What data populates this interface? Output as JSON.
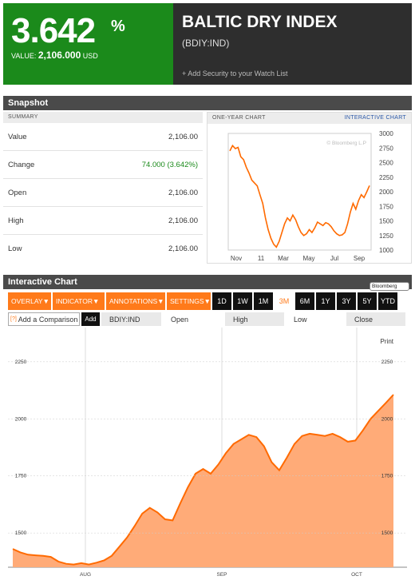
{
  "header": {
    "percent": "3.642",
    "percent_sign": "%",
    "value_label": "VALUE:",
    "value": "2,106.000",
    "currency": "USD",
    "title": "BALTIC DRY INDEX",
    "ticker": "(BDIY:IND)",
    "watch_link": "+ Add Security to your Watch List",
    "colors": {
      "up": "#1b8a1b",
      "dark": "#2e2e2e"
    }
  },
  "snapshot": {
    "title": "Snapshot",
    "summary_label": "SUMMARY",
    "rows": [
      {
        "label": "Value",
        "value": "2,106.00"
      },
      {
        "label": "Change",
        "value": "74.000 (3.642%)"
      },
      {
        "label": "Open",
        "value": "2,106.00"
      },
      {
        "label": "High",
        "value": "2,106.00"
      },
      {
        "label": "Low",
        "value": "2,106.00"
      }
    ],
    "one_year_label": "ONE-YEAR CHART",
    "interactive_link": "INTERACTIVE CHART",
    "watermark": "© Bloomberg L.P"
  },
  "interactive": {
    "title": "Interactive Chart",
    "bloomberg_tag": "Bloomberg",
    "menus": [
      "OVERLAY",
      "INDICATOR",
      "ANNOTATIONS",
      "SETTINGS"
    ],
    "ranges": [
      "1D",
      "1W",
      "1M",
      "3M",
      "6M",
      "1Y",
      "3Y",
      "5Y",
      "YTD"
    ],
    "selected_range": "3M",
    "compare_placeholder": "Add a Comparison",
    "compare_hint": "[?]",
    "add_label": "Add",
    "fields": [
      "BDIY:IND",
      "Open",
      "High",
      "Low",
      "Close"
    ],
    "print_label": "Print",
    "accent": "#ff7a1a"
  },
  "chart_data": [
    {
      "type": "line",
      "title": "ONE-YEAR CHART",
      "x_ticks": [
        "Nov",
        "11",
        "Mar",
        "May",
        "Jul",
        "Sep"
      ],
      "y_ticks": [
        3000,
        2750,
        2500,
        2250,
        2000,
        1750,
        1500,
        1250,
        1000
      ],
      "ylim": [
        1000,
        3000
      ],
      "series": [
        {
          "values": [
            2700,
            2790,
            2740,
            2760,
            2600,
            2550,
            2420,
            2320,
            2200,
            2150,
            2100,
            1950,
            1800,
            1550,
            1350,
            1200,
            1100,
            1050,
            1150,
            1300,
            1450,
            1550,
            1500,
            1600,
            1520,
            1400,
            1300,
            1250,
            1280,
            1350,
            1300,
            1380,
            1480,
            1450,
            1420,
            1470,
            1450,
            1400,
            1330,
            1280,
            1250,
            1260,
            1300,
            1450,
            1650,
            1800,
            1700,
            1850,
            1950,
            1900,
            2000,
            2106
          ]
        }
      ]
    },
    {
      "type": "area",
      "x_ticks": [
        "AUG",
        "SEP",
        "OCT"
      ],
      "y_ticks": [
        1500,
        1750,
        2000,
        2250
      ],
      "ylim": [
        1350,
        2400
      ],
      "series": [
        {
          "values": [
            1430,
            1415,
            1405,
            1402,
            1400,
            1395,
            1375,
            1365,
            1362,
            1368,
            1362,
            1370,
            1380,
            1400,
            1440,
            1480,
            1530,
            1585,
            1610,
            1590,
            1560,
            1555,
            1630,
            1700,
            1760,
            1780,
            1760,
            1800,
            1850,
            1890,
            1910,
            1930,
            1920,
            1880,
            1810,
            1775,
            1830,
            1890,
            1925,
            1935,
            1930,
            1925,
            1935,
            1920,
            1900,
            1905,
            1950,
            2000,
            2035,
            2070,
            2106
          ]
        }
      ]
    }
  ]
}
